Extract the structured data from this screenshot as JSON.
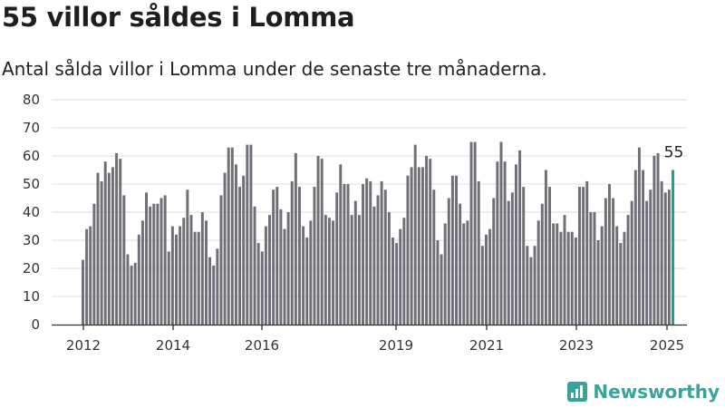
{
  "header": {
    "title": "55 villor såldes i Lomma",
    "subtitle": "Antal sålda villor i Lomma under de senaste tre månaderna."
  },
  "branding": {
    "name": "Newsworthy",
    "icon": "newsworthy-logo-icon",
    "color": "#3aa399"
  },
  "chart_data": {
    "type": "bar",
    "title": "55 villor såldes i Lomma",
    "subtitle": "Antal sålda villor i Lomma under de senaste tre månaderna.",
    "xlabel": "",
    "ylabel": "",
    "ylim": [
      0,
      80
    ],
    "yticks": [
      0,
      10,
      20,
      30,
      40,
      50,
      60,
      70,
      80
    ],
    "grid": true,
    "legend": "none",
    "xtick_labels": [
      "2012",
      "2014",
      "2016",
      "2019",
      "2021",
      "2023",
      "2025"
    ],
    "bar_color": "#706f76",
    "highlight_color": "#1f9e93",
    "highlight_label": "55",
    "values": [
      23,
      34,
      35,
      43,
      54,
      51,
      58,
      54,
      56,
      61,
      59,
      46,
      25,
      21,
      22,
      32,
      37,
      47,
      42,
      43,
      43,
      45,
      46,
      26,
      35,
      32,
      35,
      38,
      48,
      39,
      33,
      33,
      40,
      37,
      24,
      21,
      27,
      46,
      54,
      63,
      63,
      57,
      49,
      53,
      64,
      64,
      42,
      29,
      26,
      35,
      39,
      48,
      49,
      41,
      34,
      40,
      51,
      61,
      49,
      35,
      31,
      37,
      49,
      60,
      59,
      39,
      38,
      37,
      47,
      57,
      50,
      50,
      39,
      44,
      39,
      50,
      52,
      51,
      42,
      46,
      51,
      48,
      40,
      31,
      29,
      34,
      38,
      53,
      56,
      64,
      56,
      56,
      60,
      59,
      48,
      30,
      25,
      36,
      45,
      53,
      53,
      43,
      36,
      37,
      65,
      65,
      51,
      28,
      32,
      34,
      45,
      58,
      65,
      58,
      44,
      47,
      57,
      62,
      49,
      28,
      24,
      28,
      37,
      43,
      55,
      49,
      36,
      36,
      33,
      39,
      33,
      33,
      31,
      49,
      49,
      51,
      40,
      40,
      30,
      35,
      45,
      50,
      45,
      35,
      29,
      33,
      39,
      44,
      55,
      63,
      55,
      44,
      48,
      60,
      61,
      51,
      47,
      48,
      55
    ]
  }
}
